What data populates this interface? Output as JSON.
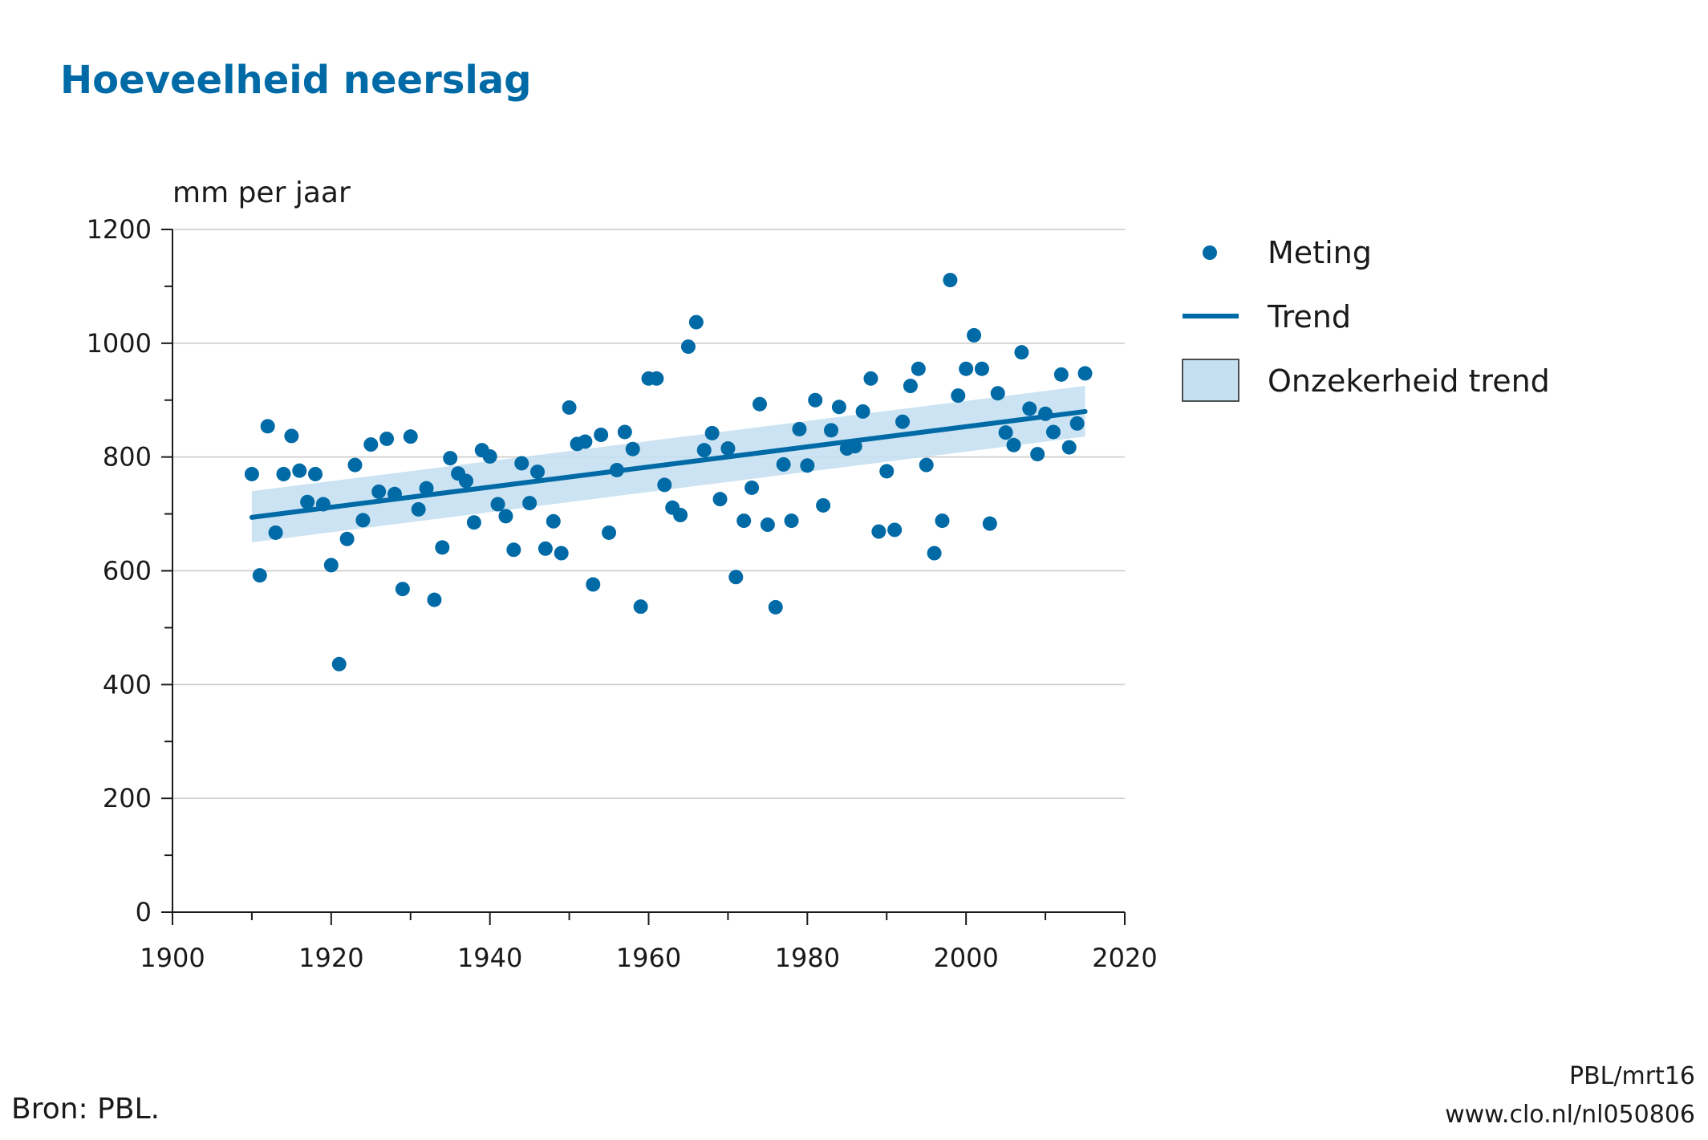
{
  "title": "Hoeveelheid neerslag",
  "source": "Bron: PBL.",
  "credit": {
    "code": "PBL/mrt16",
    "url": "www.clo.nl/nl050806"
  },
  "colors": {
    "accent": "#006aa6",
    "band": "#c5e0f1",
    "grid": "#c8c8c8",
    "axis": "#1a1a1a"
  },
  "chart_data": {
    "type": "scatter",
    "title": "Hoeveelheid neerslag",
    "ylabel": "mm per jaar",
    "xlabel": "",
    "xlim": [
      1900,
      2020
    ],
    "ylim": [
      0,
      1200
    ],
    "x_ticks": [
      "1900",
      "1920",
      "1940",
      "1960",
      "1980",
      "2000",
      "2020"
    ],
    "y_ticks": [
      "0",
      "200",
      "400",
      "600",
      "800",
      "1000",
      "1200"
    ],
    "grid": "horizontal",
    "legend_position": "right",
    "legend": [
      "Meting",
      "Trend",
      "Onzekerheid trend"
    ],
    "series": [
      {
        "name": "Meting",
        "kind": "points",
        "x": [
          1910,
          1911,
          1912,
          1913,
          1914,
          1915,
          1916,
          1917,
          1918,
          1919,
          1920,
          1921,
          1922,
          1923,
          1924,
          1925,
          1926,
          1927,
          1928,
          1929,
          1930,
          1931,
          1932,
          1933,
          1934,
          1935,
          1936,
          1937,
          1938,
          1939,
          1940,
          1941,
          1942,
          1943,
          1944,
          1945,
          1946,
          1947,
          1948,
          1949,
          1950,
          1951,
          1952,
          1953,
          1954,
          1955,
          1956,
          1957,
          1958,
          1959,
          1960,
          1961,
          1962,
          1963,
          1964,
          1965,
          1966,
          1967,
          1968,
          1969,
          1970,
          1971,
          1972,
          1973,
          1974,
          1975,
          1976,
          1977,
          1978,
          1979,
          1980,
          1981,
          1982,
          1983,
          1984,
          1985,
          1986,
          1987,
          1988,
          1989,
          1990,
          1991,
          1992,
          1993,
          1994,
          1995,
          1996,
          1997,
          1998,
          1999,
          2000,
          2001,
          2002,
          2003,
          2004,
          2005,
          2006,
          2007,
          2008,
          2009,
          2010,
          2011,
          2012,
          2013,
          2014,
          2015
        ],
        "y": [
          770,
          592,
          854,
          667,
          770,
          837,
          776,
          721,
          770,
          717,
          610,
          436,
          656,
          786,
          689,
          822,
          739,
          832,
          735,
          568,
          836,
          708,
          745,
          549,
          641,
          798,
          771,
          758,
          685,
          812,
          801,
          717,
          696,
          637,
          789,
          719,
          774,
          639,
          687,
          631,
          887,
          823,
          827,
          576,
          839,
          667,
          777,
          844,
          814,
          537,
          938,
          938,
          751,
          711,
          698,
          994,
          1037,
          812,
          842,
          726,
          815,
          589,
          688,
          746,
          893,
          681,
          536,
          787,
          688,
          849,
          785,
          900,
          715,
          847,
          888,
          815,
          819,
          880,
          938,
          669,
          775,
          672,
          862,
          925,
          955,
          786,
          631,
          688,
          1111,
          908,
          955,
          1014,
          955,
          683,
          912,
          843,
          821,
          984,
          885,
          805,
          876,
          844,
          945,
          817,
          859,
          947
        ]
      },
      {
        "name": "Trend",
        "kind": "line",
        "x": [
          1910,
          2015
        ],
        "y": [
          694,
          880
        ]
      },
      {
        "name": "Onzekerheid trend",
        "kind": "band",
        "x": [
          1910,
          2015
        ],
        "lower": [
          650,
          836
        ],
        "upper": [
          740,
          925
        ]
      }
    ]
  }
}
